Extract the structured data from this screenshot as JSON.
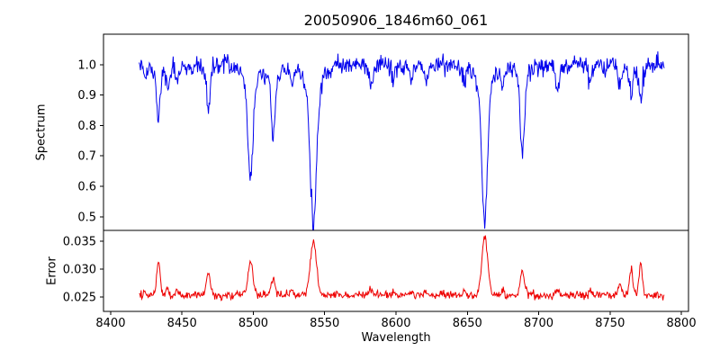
{
  "figure": {
    "title": "20050906_1846m60_061",
    "xlabel": "Wavelength",
    "background": "#ffffff"
  },
  "chart_data": [
    {
      "type": "line",
      "title": "20050906_1846m60_061",
      "xlabel": "Wavelength",
      "ylabel": "Spectrum",
      "color": "#0000ee",
      "legend": "none",
      "grid": false,
      "x_start": 8420,
      "x_end": 8788,
      "n_points": 820,
      "xlim": [
        8395,
        8805
      ],
      "ylim": [
        0.455,
        1.1
      ],
      "xticks": [
        8400,
        8450,
        8500,
        8550,
        8600,
        8650,
        8700,
        8750,
        8800
      ],
      "xtick_labels": [
        "8400",
        "8450",
        "8500",
        "8550",
        "8600",
        "8650",
        "8700",
        "8750",
        "8800"
      ],
      "yticks": [
        0.5,
        0.6,
        0.7,
        0.8,
        0.9,
        1.0
      ],
      "ytick_labels": [
        "0.5",
        "0.6",
        "0.7",
        "0.8",
        "0.9",
        "1.0"
      ],
      "continuum": 1.0,
      "noise_sigma": 0.016,
      "absorption_lines": [
        {
          "center": 8424.0,
          "depth": 0.06,
          "width": 0.9,
          "err_amp": 0.0008
        },
        {
          "center": 8433.5,
          "depth": 0.185,
          "width": 1.2,
          "err_amp": 0.006
        },
        {
          "center": 8440.0,
          "depth": 0.07,
          "width": 1.0,
          "err_amp": 0.0012
        },
        {
          "center": 8446.5,
          "depth": 0.055,
          "width": 1.0,
          "err_amp": 0.0008
        },
        {
          "center": 8468.5,
          "depth": 0.135,
          "width": 1.3,
          "err_amp": 0.0042
        },
        {
          "center": 8498.0,
          "depth": 0.375,
          "width": 1.8,
          "err_amp": 0.0058
        },
        {
          "center": 8514.0,
          "depth": 0.235,
          "width": 1.4,
          "err_amp": 0.0028
        },
        {
          "center": 8527.0,
          "depth": 0.065,
          "width": 1.1,
          "err_amp": 0.001
        },
        {
          "center": 8542.1,
          "depth": 0.515,
          "width": 2.2,
          "err_amp": 0.0094
        },
        {
          "center": 8582.5,
          "depth": 0.065,
          "width": 1.1,
          "err_amp": 0.001
        },
        {
          "center": 8598.0,
          "depth": 0.055,
          "width": 1.0,
          "err_amp": 0.0008
        },
        {
          "center": 8611.0,
          "depth": 0.05,
          "width": 1.0,
          "err_amp": 0.0008
        },
        {
          "center": 8621.5,
          "depth": 0.06,
          "width": 1.0,
          "err_amp": 0.0009
        },
        {
          "center": 8648.0,
          "depth": 0.055,
          "width": 1.0,
          "err_amp": 0.0008
        },
        {
          "center": 8662.2,
          "depth": 0.5,
          "width": 2.0,
          "err_amp": 0.0106
        },
        {
          "center": 8674.8,
          "depth": 0.07,
          "width": 1.0,
          "err_amp": 0.001
        },
        {
          "center": 8688.6,
          "depth": 0.285,
          "width": 1.5,
          "err_amp": 0.004
        },
        {
          "center": 8713.2,
          "depth": 0.075,
          "width": 1.1,
          "err_amp": 0.0012
        },
        {
          "center": 8736.0,
          "depth": 0.065,
          "width": 1.0,
          "err_amp": 0.001
        },
        {
          "center": 8757.0,
          "depth": 0.08,
          "width": 1.0,
          "err_amp": 0.0022
        },
        {
          "center": 8764.8,
          "depth": 0.105,
          "width": 1.1,
          "err_amp": 0.0048
        },
        {
          "center": 8771.5,
          "depth": 0.125,
          "width": 1.1,
          "err_amp": 0.0058
        }
      ]
    },
    {
      "type": "line",
      "ylabel": "Error",
      "color": "#ee0000",
      "legend": "none",
      "grid": false,
      "ylim": [
        0.0224,
        0.0369
      ],
      "yticks": [
        0.025,
        0.03,
        0.035
      ],
      "ytick_labels": [
        "0.025",
        "0.030",
        "0.035"
      ],
      "baseline": 0.0253,
      "noise_sigma": 0.00035
    }
  ]
}
